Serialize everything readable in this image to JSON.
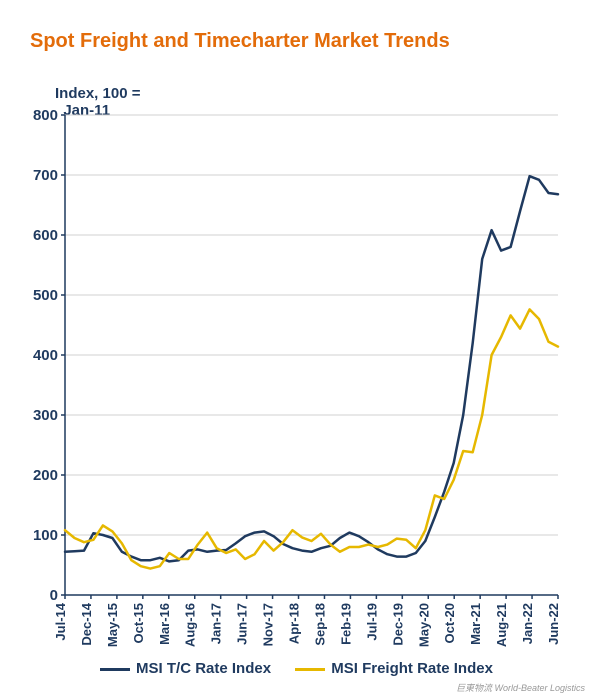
{
  "title": "Spot Freight and Timecharter Market Trends",
  "subtitle": "Index, 100 =\n  Jan-11",
  "chart": {
    "type": "line",
    "background_color": "#ffffff",
    "grid_color": "#d0d0d0",
    "axis_color": "#1f3a5f",
    "title_fontsize": 20,
    "title_color": "#e36c0a",
    "label_fontsize": 15,
    "label_color": "#1f3a5f",
    "ylim": [
      0,
      800
    ],
    "ytick_step": 100,
    "yticks": [
      0,
      100,
      200,
      300,
      400,
      500,
      600,
      700,
      800
    ],
    "x_categories": [
      "Jul-14",
      "Dec-14",
      "May-15",
      "Oct-15",
      "Mar-16",
      "Aug-16",
      "Jan-17",
      "Jun-17",
      "Nov-17",
      "Apr-18",
      "Sep-18",
      "Feb-19",
      "Jul-19",
      "Dec-19",
      "May-20",
      "Oct-20",
      "Mar-21",
      "Aug-21",
      "Jan-22",
      "Jun-22"
    ],
    "line_width": 2.5,
    "series": [
      {
        "name": "MSI T/C Rate Index",
        "color": "#1f3a5f",
        "values": [
          72,
          73,
          74,
          103,
          100,
          95,
          72,
          64,
          58,
          58,
          62,
          56,
          58,
          74,
          76,
          72,
          74,
          75,
          86,
          98,
          104,
          106,
          98,
          85,
          78,
          74,
          72,
          78,
          82,
          95,
          104,
          98,
          88,
          76,
          68,
          64,
          64,
          70,
          90,
          130,
          172,
          220,
          300,
          420,
          560,
          608,
          574,
          580,
          640,
          698,
          692,
          670,
          668
        ]
      },
      {
        "name": "MSI Freight Rate Index",
        "color": "#e6b800",
        "values": [
          108,
          95,
          88,
          92,
          116,
          106,
          86,
          58,
          48,
          44,
          48,
          70,
          60,
          60,
          84,
          104,
          78,
          70,
          76,
          60,
          68,
          90,
          74,
          88,
          108,
          96,
          90,
          102,
          84,
          72,
          80,
          80,
          84,
          80,
          84,
          94,
          92,
          78,
          108,
          166,
          160,
          192,
          240,
          238,
          300,
          400,
          430,
          466,
          444,
          476,
          460,
          422,
          414
        ]
      }
    ],
    "legend": {
      "items": [
        {
          "label": "MSI T/C Rate Index",
          "color": "#1f3a5f"
        },
        {
          "label": "MSI Freight Rate Index",
          "color": "#e6b800"
        }
      ]
    }
  },
  "watermark": "巨東物流 World-Beater Logistics"
}
